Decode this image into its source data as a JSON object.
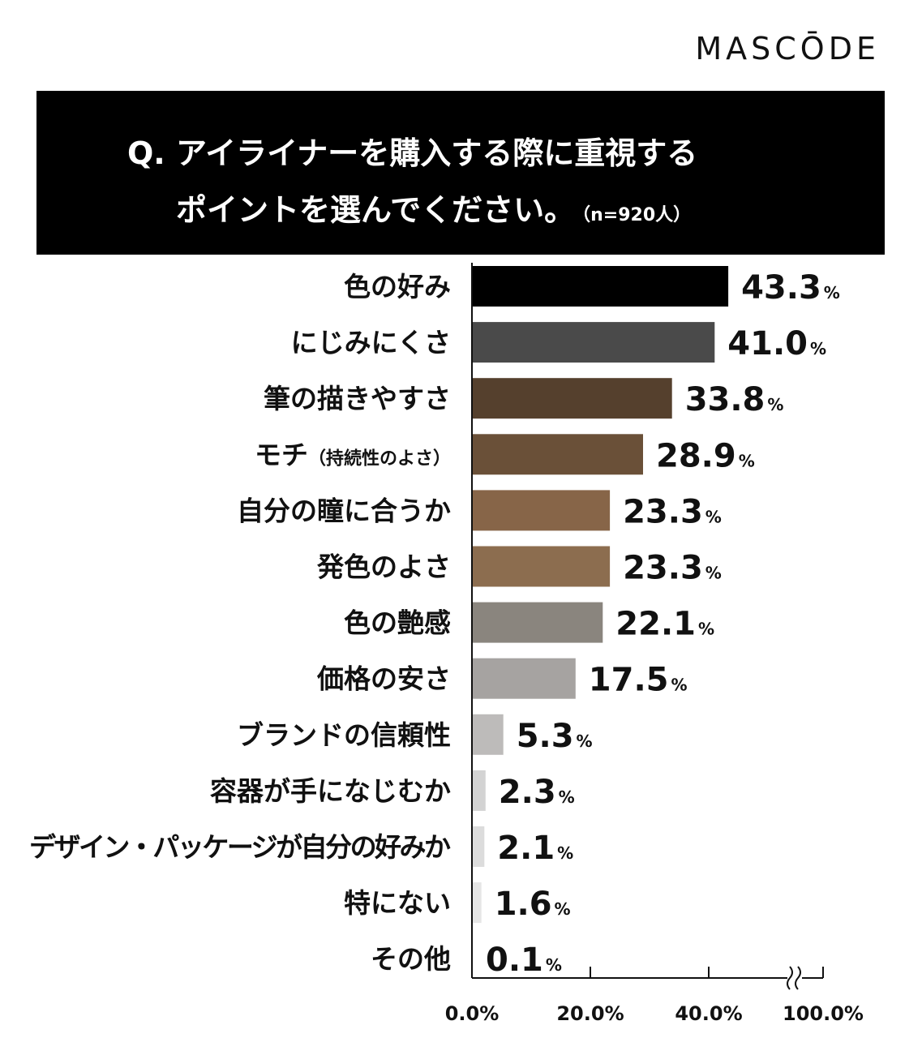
{
  "brand": "MASCŌDE",
  "question": {
    "line1": "Q. アイライナーを購入する際に重視する",
    "line2": "ポイントを選んでください。",
    "sample": "（n=920人）"
  },
  "chart_data": {
    "type": "bar",
    "orientation": "horizontal",
    "title": "Q. アイライナーを購入する際に重視するポイントを選んでください。（n=920人）",
    "categories": [
      "色の好み",
      "にじみにくさ",
      "筆の描きやすさ",
      "モチ（持続性のよさ）",
      "自分の瞳に合うか",
      "発色のよさ",
      "色の艶感",
      "価格の安さ",
      "ブランドの信頼性",
      "容器が手になじむか",
      "デザイン・パッケージが自分の好みか",
      "特にない",
      "その他"
    ],
    "category_labels": [
      {
        "main": "色の好み",
        "sub": ""
      },
      {
        "main": "にじみにくさ",
        "sub": ""
      },
      {
        "main": "筆の描きやすさ",
        "sub": ""
      },
      {
        "main": "モチ",
        "sub": "（持続性のよさ）"
      },
      {
        "main": "自分の瞳に合うか",
        "sub": ""
      },
      {
        "main": "発色のよさ",
        "sub": ""
      },
      {
        "main": "色の艶感",
        "sub": ""
      },
      {
        "main": "価格の安さ",
        "sub": ""
      },
      {
        "main": "ブランドの信頼性",
        "sub": ""
      },
      {
        "main": "容器が手になじむか",
        "sub": ""
      },
      {
        "main": "デザイン・パッケージが自分の好みか",
        "sub": ""
      },
      {
        "main": "特にない",
        "sub": ""
      },
      {
        "main": "その他",
        "sub": ""
      }
    ],
    "values": [
      43.3,
      41.0,
      33.8,
      28.9,
      23.3,
      23.3,
      22.1,
      17.5,
      5.3,
      2.3,
      2.1,
      1.6,
      0.1
    ],
    "value_labels": [
      "43.3",
      "41.0",
      "33.8",
      "28.9",
      "23.3",
      "23.3",
      "22.1",
      "17.5",
      "5.3",
      "2.3",
      "2.1",
      "1.6",
      "0.1"
    ],
    "unit": "%",
    "bar_colors": [
      "#000000",
      "#4a4a4a",
      "#55402d",
      "#6a5038",
      "#876548",
      "#8c6d4f",
      "#8a857e",
      "#a6a3a1",
      "#bdbbba",
      "#d3d3d3",
      "#dcdcdc",
      "#e6e6e6",
      "#f0f0f0"
    ],
    "x_ticks": [
      "0.0%",
      "20.0%",
      "40.0%",
      "100.0%"
    ],
    "xlim": [
      0,
      100
    ],
    "axis_break": true,
    "xlabel": "",
    "ylabel": ""
  }
}
